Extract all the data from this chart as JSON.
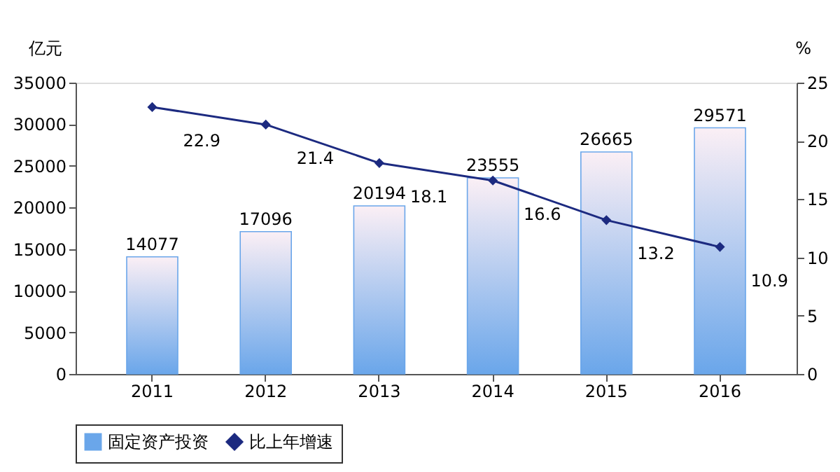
{
  "chart_data": {
    "type": "bar",
    "categories": [
      "2011",
      "2012",
      "2013",
      "2014",
      "2015",
      "2016"
    ],
    "ylabel": "亿元",
    "y2label": "%",
    "ylim": [
      0,
      35000
    ],
    "yticks": [
      0,
      5000,
      10000,
      15000,
      20000,
      25000,
      30000,
      35000
    ],
    "y2lim": [
      0,
      25
    ],
    "y2ticks": [
      0,
      5,
      10,
      15,
      20,
      25
    ],
    "series": [
      {
        "name": "固定资产投资",
        "type": "bar",
        "color": "#6aa6ea",
        "values": [
          14077,
          17096,
          20194,
          23555,
          26665,
          29571
        ]
      },
      {
        "name": "比上年增速",
        "type": "line",
        "axis": "y2",
        "color": "#1c2a80",
        "marker": "diamond",
        "values": [
          22.9,
          21.4,
          18.1,
          16.6,
          13.2,
          10.9
        ]
      }
    ],
    "data_labels": true,
    "legend": "bottom",
    "grid": false
  }
}
